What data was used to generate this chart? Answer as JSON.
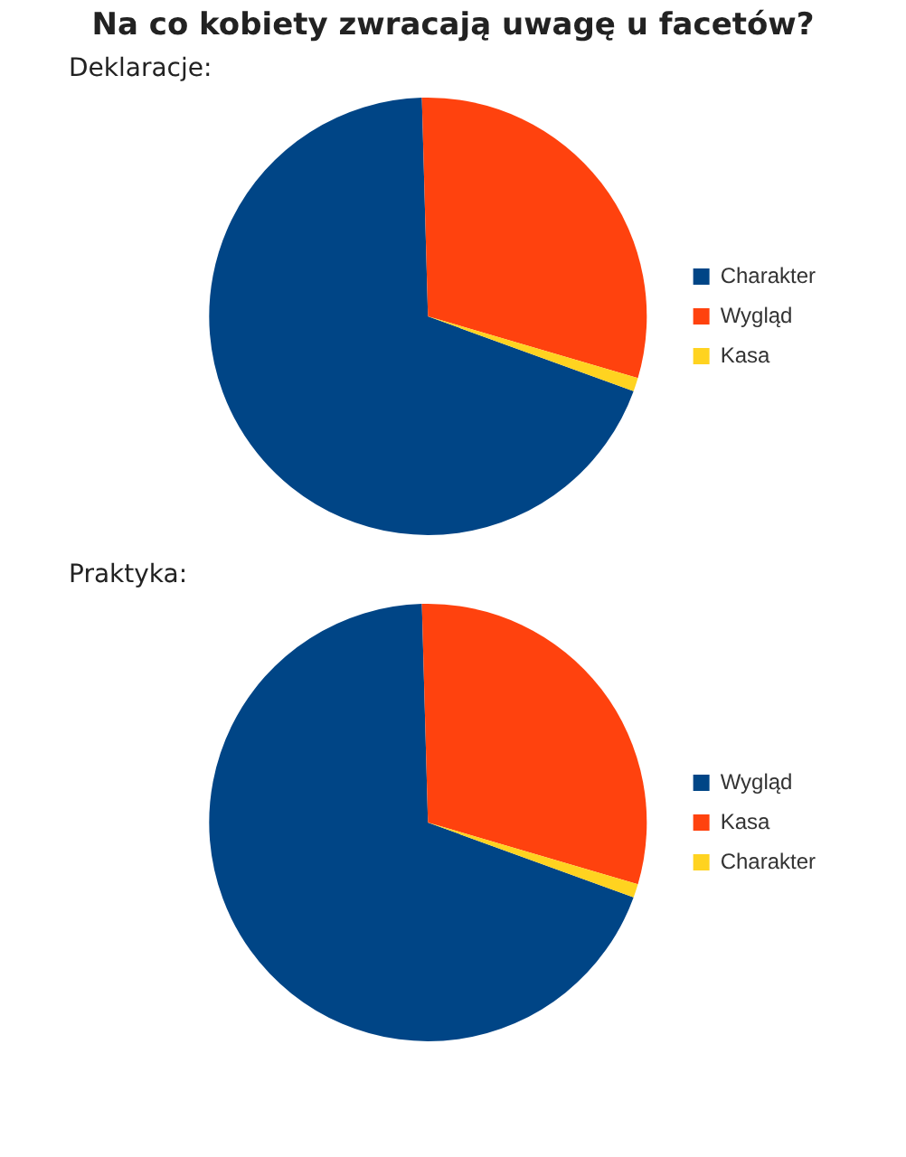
{
  "chart_data": [
    {
      "type": "pie",
      "title": "Na co kobiety zwracają uwagę u facetów?",
      "subtitle": "Deklaracje:",
      "categories": [
        "Charakter",
        "Wygląd",
        "Kasa"
      ],
      "values": [
        69,
        30,
        1
      ],
      "colors": [
        "#004586",
        "#ff420e",
        "#ffd320"
      ],
      "legend": "right"
    },
    {
      "type": "pie",
      "title": "Praktyka:",
      "categories": [
        "Wygląd",
        "Kasa",
        "Charakter"
      ],
      "values": [
        69,
        30,
        1
      ],
      "colors": [
        "#004586",
        "#ff420e",
        "#ffd320"
      ],
      "legend": "right"
    }
  ]
}
